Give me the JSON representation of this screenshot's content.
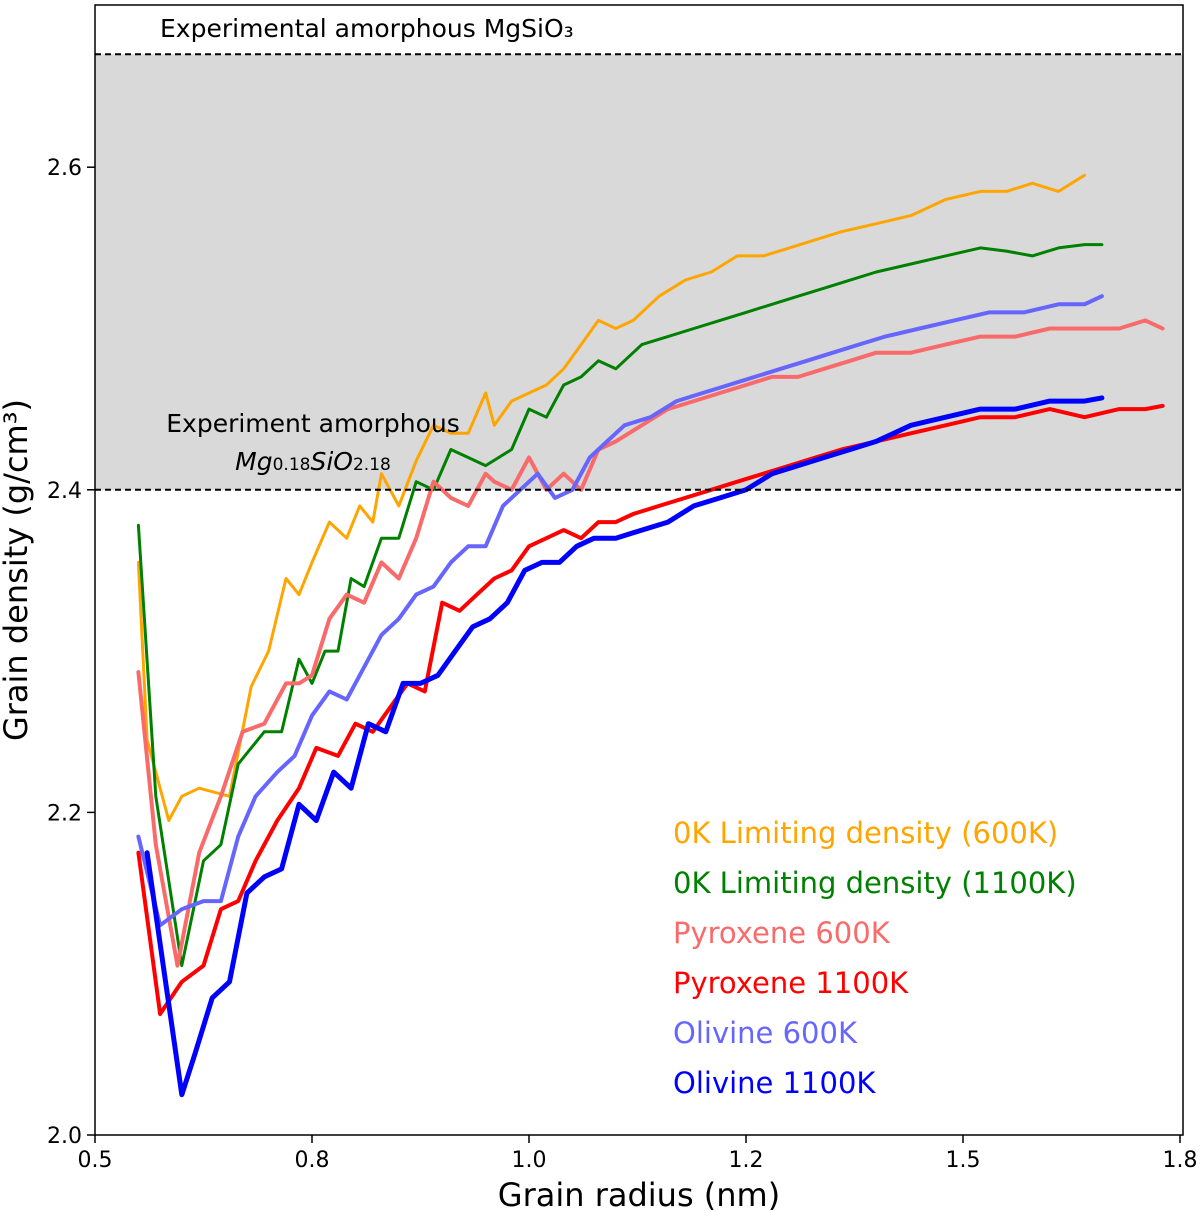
{
  "chart_data": {
    "type": "line",
    "xlabel": "Grain radius (nm)",
    "ylabel": "Grain density (g/cm³)",
    "xlim": [
      0.5,
      1.75
    ],
    "ylim": [
      2.0,
      2.67
    ],
    "xticks": [
      {
        "value": 0.5,
        "label": "0.5"
      },
      {
        "value": 0.75,
        "label": "0.8"
      },
      {
        "value": 1.0,
        "label": "1.0"
      },
      {
        "value": 1.25,
        "label": "1.2"
      },
      {
        "value": 1.5,
        "label": "1.5"
      },
      {
        "value": 1.75,
        "label": "1.8"
      }
    ],
    "yticks": [
      {
        "value": 2.0,
        "label": "2.0"
      },
      {
        "value": 2.2,
        "label": "2.2"
      },
      {
        "value": 2.4,
        "label": "2.4"
      },
      {
        "value": 2.6,
        "label": "2.6"
      }
    ],
    "shaded_region": {
      "from": 2.4,
      "to": 2.67,
      "color": "#d9d9d9"
    },
    "reference_lines": [
      {
        "value": 2.67,
        "label": "Experimental amorphous MgSiO₃"
      },
      {
        "value": 2.4,
        "label_line1": "Experiment amorphous",
        "label_line2": {
          "a": "Mg",
          "b": "0.18",
          "c": "SiO",
          "d": "2.18"
        }
      }
    ],
    "series": [
      {
        "name": "0K Limiting density (600K)",
        "color": "#ffa500",
        "width": 3,
        "x": [
          0.55,
          0.56,
          0.585,
          0.6,
          0.62,
          0.655,
          0.68,
          0.7,
          0.72,
          0.735,
          0.75,
          0.77,
          0.79,
          0.805,
          0.82,
          0.83,
          0.85,
          0.87,
          0.89,
          0.91,
          0.93,
          0.95,
          0.96,
          0.98,
          1.0,
          1.02,
          1.04,
          1.06,
          1.08,
          1.1,
          1.12,
          1.15,
          1.18,
          1.21,
          1.24,
          1.27,
          1.3,
          1.33,
          1.36,
          1.4,
          1.44,
          1.48,
          1.52,
          1.55,
          1.58,
          1.61,
          1.64
        ],
        "y": [
          2.355,
          2.245,
          2.195,
          2.21,
          2.215,
          2.21,
          2.278,
          2.3,
          2.345,
          2.335,
          2.355,
          2.38,
          2.37,
          2.39,
          2.38,
          2.41,
          2.39,
          2.418,
          2.44,
          2.435,
          2.435,
          2.46,
          2.44,
          2.455,
          2.46,
          2.465,
          2.475,
          2.49,
          2.505,
          2.5,
          2.505,
          2.52,
          2.53,
          2.535,
          2.545,
          2.545,
          2.55,
          2.555,
          2.56,
          2.565,
          2.57,
          2.58,
          2.585,
          2.585,
          2.59,
          2.585,
          2.595
        ]
      },
      {
        "name": "0K Limiting density (1100K)",
        "color": "#008000",
        "width": 3,
        "x": [
          0.55,
          0.57,
          0.6,
          0.625,
          0.645,
          0.665,
          0.695,
          0.715,
          0.735,
          0.75,
          0.765,
          0.78,
          0.795,
          0.81,
          0.83,
          0.85,
          0.87,
          0.89,
          0.91,
          0.93,
          0.95,
          0.98,
          1.0,
          1.02,
          1.04,
          1.06,
          1.08,
          1.1,
          1.13,
          1.16,
          1.19,
          1.22,
          1.25,
          1.28,
          1.31,
          1.34,
          1.37,
          1.4,
          1.44,
          1.48,
          1.52,
          1.55,
          1.58,
          1.61,
          1.64,
          1.66
        ],
        "y": [
          2.378,
          2.21,
          2.105,
          2.17,
          2.18,
          2.23,
          2.25,
          2.25,
          2.295,
          2.28,
          2.3,
          2.3,
          2.345,
          2.34,
          2.37,
          2.37,
          2.405,
          2.4,
          2.425,
          2.42,
          2.415,
          2.425,
          2.45,
          2.445,
          2.465,
          2.47,
          2.48,
          2.475,
          2.49,
          2.495,
          2.5,
          2.505,
          2.51,
          2.515,
          2.52,
          2.525,
          2.53,
          2.535,
          2.54,
          2.545,
          2.55,
          2.548,
          2.545,
          2.55,
          2.552,
          2.552
        ]
      },
      {
        "name": "Pyroxene 600K",
        "color": "#f96b6b",
        "width": 4,
        "x": [
          0.55,
          0.57,
          0.595,
          0.62,
          0.645,
          0.67,
          0.695,
          0.72,
          0.735,
          0.75,
          0.77,
          0.79,
          0.81,
          0.83,
          0.85,
          0.87,
          0.89,
          0.91,
          0.93,
          0.95,
          0.96,
          0.98,
          1.0,
          1.02,
          1.04,
          1.06,
          1.08,
          1.1,
          1.13,
          1.16,
          1.19,
          1.22,
          1.25,
          1.28,
          1.31,
          1.34,
          1.37,
          1.4,
          1.44,
          1.48,
          1.52,
          1.56,
          1.6,
          1.64,
          1.68,
          1.71,
          1.73
        ],
        "y": [
          2.287,
          2.18,
          2.105,
          2.175,
          2.21,
          2.25,
          2.255,
          2.28,
          2.28,
          2.285,
          2.32,
          2.335,
          2.33,
          2.355,
          2.345,
          2.37,
          2.405,
          2.395,
          2.39,
          2.41,
          2.405,
          2.4,
          2.42,
          2.4,
          2.41,
          2.4,
          2.425,
          2.43,
          2.44,
          2.45,
          2.455,
          2.46,
          2.465,
          2.47,
          2.47,
          2.475,
          2.48,
          2.485,
          2.485,
          2.49,
          2.495,
          2.495,
          2.5,
          2.5,
          2.5,
          2.505,
          2.5
        ]
      },
      {
        "name": "Pyroxene 1100K",
        "color": "#ff0000",
        "width": 4,
        "x": [
          0.55,
          0.575,
          0.6,
          0.625,
          0.645,
          0.665,
          0.685,
          0.71,
          0.735,
          0.755,
          0.78,
          0.8,
          0.82,
          0.84,
          0.86,
          0.88,
          0.9,
          0.92,
          0.94,
          0.96,
          0.98,
          1.0,
          1.02,
          1.04,
          1.06,
          1.08,
          1.1,
          1.12,
          1.15,
          1.18,
          1.21,
          1.24,
          1.27,
          1.3,
          1.33,
          1.36,
          1.4,
          1.44,
          1.48,
          1.52,
          1.56,
          1.6,
          1.64,
          1.68,
          1.71,
          1.73
        ],
        "y": [
          2.175,
          2.075,
          2.095,
          2.105,
          2.14,
          2.145,
          2.17,
          2.195,
          2.215,
          2.24,
          2.235,
          2.255,
          2.25,
          2.265,
          2.28,
          2.275,
          2.33,
          2.325,
          2.335,
          2.345,
          2.35,
          2.365,
          2.37,
          2.375,
          2.37,
          2.38,
          2.38,
          2.385,
          2.39,
          2.395,
          2.4,
          2.405,
          2.41,
          2.415,
          2.42,
          2.425,
          2.43,
          2.435,
          2.44,
          2.445,
          2.445,
          2.45,
          2.445,
          2.45,
          2.45,
          2.452
        ]
      },
      {
        "name": "Olivine 600K",
        "color": "#6666ff",
        "width": 4,
        "x": [
          0.55,
          0.575,
          0.6,
          0.625,
          0.645,
          0.665,
          0.685,
          0.71,
          0.73,
          0.75,
          0.77,
          0.79,
          0.81,
          0.83,
          0.85,
          0.87,
          0.89,
          0.91,
          0.93,
          0.95,
          0.97,
          0.99,
          1.01,
          1.03,
          1.05,
          1.07,
          1.09,
          1.11,
          1.14,
          1.17,
          1.2,
          1.23,
          1.26,
          1.29,
          1.32,
          1.35,
          1.38,
          1.41,
          1.45,
          1.49,
          1.53,
          1.57,
          1.61,
          1.64,
          1.66
        ],
        "y": [
          2.185,
          2.13,
          2.14,
          2.145,
          2.145,
          2.185,
          2.21,
          2.225,
          2.235,
          2.26,
          2.275,
          2.27,
          2.29,
          2.31,
          2.32,
          2.335,
          2.34,
          2.355,
          2.365,
          2.365,
          2.39,
          2.4,
          2.41,
          2.395,
          2.4,
          2.42,
          2.43,
          2.44,
          2.445,
          2.455,
          2.46,
          2.465,
          2.47,
          2.475,
          2.48,
          2.485,
          2.49,
          2.495,
          2.5,
          2.505,
          2.51,
          2.51,
          2.515,
          2.515,
          2.52
        ]
      },
      {
        "name": "Olivine 1100K",
        "color": "#0000ff",
        "width": 5,
        "x": [
          0.56,
          0.58,
          0.6,
          0.615,
          0.635,
          0.655,
          0.675,
          0.695,
          0.715,
          0.735,
          0.755,
          0.775,
          0.795,
          0.815,
          0.835,
          0.855,
          0.875,
          0.895,
          0.915,
          0.935,
          0.955,
          0.975,
          0.995,
          1.015,
          1.035,
          1.055,
          1.075,
          1.1,
          1.13,
          1.16,
          1.19,
          1.22,
          1.25,
          1.28,
          1.31,
          1.34,
          1.37,
          1.4,
          1.44,
          1.48,
          1.52,
          1.56,
          1.6,
          1.64,
          1.66
        ],
        "y": [
          2.175,
          2.1,
          2.025,
          2.05,
          2.085,
          2.095,
          2.15,
          2.16,
          2.165,
          2.205,
          2.195,
          2.225,
          2.215,
          2.255,
          2.25,
          2.28,
          2.28,
          2.285,
          2.3,
          2.315,
          2.32,
          2.33,
          2.35,
          2.355,
          2.355,
          2.365,
          2.37,
          2.37,
          2.375,
          2.38,
          2.39,
          2.395,
          2.4,
          2.41,
          2.415,
          2.42,
          2.425,
          2.43,
          2.44,
          2.445,
          2.45,
          2.45,
          2.455,
          2.455,
          2.457
        ]
      }
    ]
  }
}
